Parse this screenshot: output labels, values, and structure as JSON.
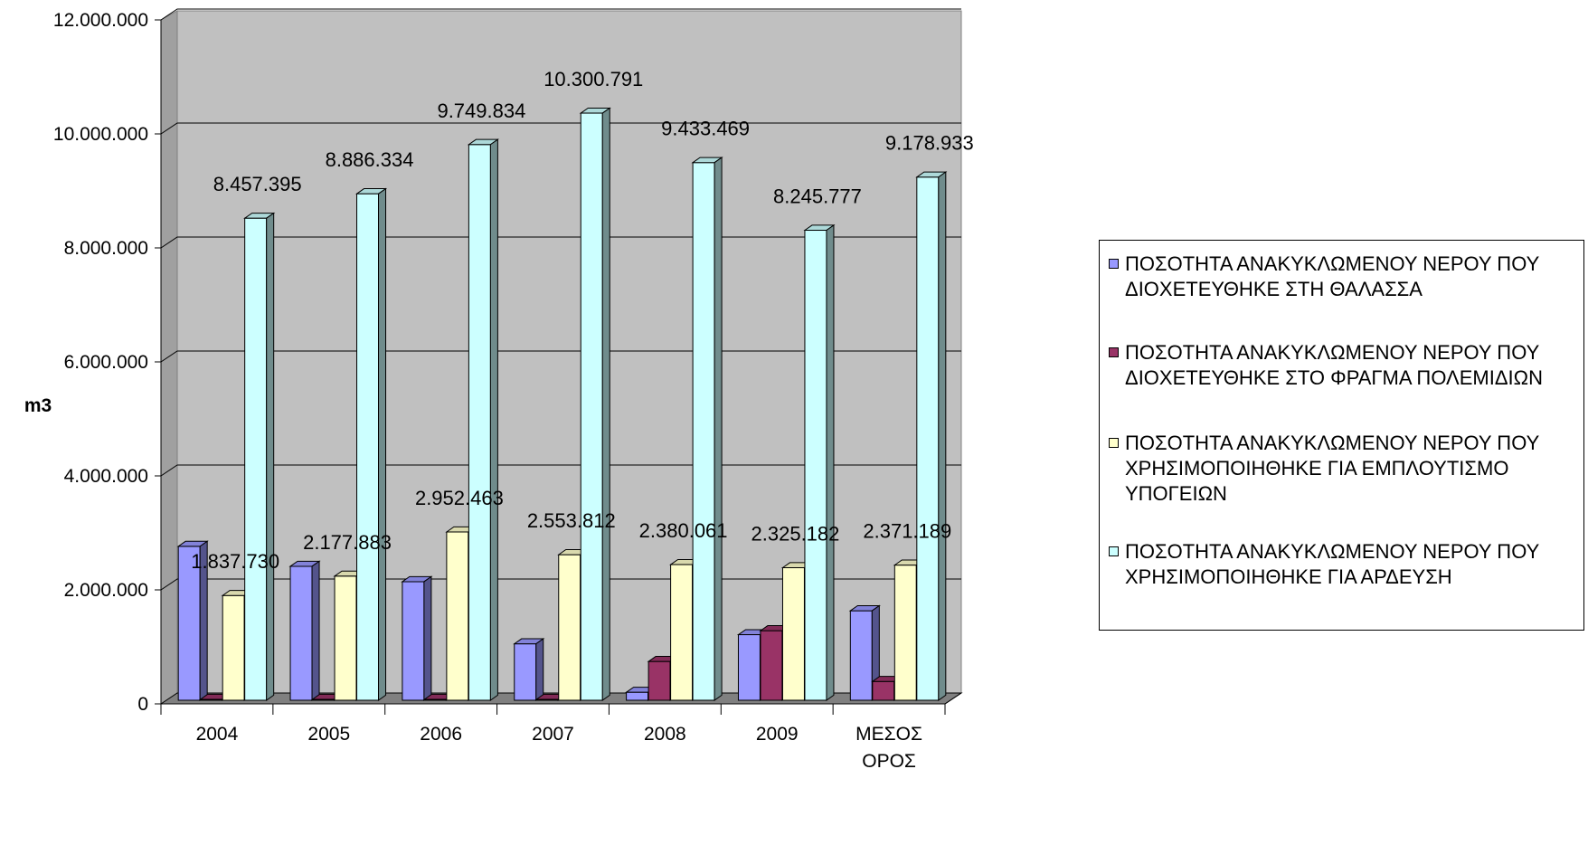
{
  "chart_data": {
    "type": "bar",
    "ylabel": "m3",
    "ylim": [
      0,
      12000000
    ],
    "yticks": [
      "0",
      "2.000.000",
      "4.000.000",
      "6.000.000",
      "8.000.000",
      "10.000.000",
      "12.000.000"
    ],
    "categories": [
      "2004",
      "2005",
      "2006",
      "2007",
      "2008",
      "2009",
      "ΜΕΣΟΣ ΟΡΟΣ"
    ],
    "grid": true,
    "legend_position": "right",
    "series": [
      {
        "name": "ΠΟΣΟΤΗΤΑ ΑΝΑΚΥΚΛΩΜΕΝΟΥ ΝΕΡΟΥ ΠΟΥ ΔΙΟΧΕΤΕΥΘΗΚΕ ΣΤΗ ΘΑΛΑΣΣΑ",
        "color": "#9999ff",
        "values": [
          2700000,
          2350000,
          2080000,
          990000,
          140000,
          1150000,
          1570000
        ],
        "labels": [
          "",
          "",
          "",
          "",
          "",
          "",
          ""
        ]
      },
      {
        "name": "ΠΟΣΟΤΗΤΑ ΑΝΑΚΥΚΛΩΜΕΝΟΥ ΝΕΡΟΥ ΠΟΥ ΔΙΟΧΕΤΕΥΘΗΚΕ ΣΤΟ ΦΡΑΓΜΑ ΠΟΛΕΜΙΔΙΩΝ",
        "color": "#993366",
        "values": [
          0,
          0,
          0,
          0,
          680000,
          1220000,
          330000
        ],
        "labels": [
          "",
          "",
          "",
          "",
          "",
          "",
          ""
        ]
      },
      {
        "name": "ΠΟΣΟΤΗΤΑ ΑΝΑΚΥΚΛΩΜΕΝΟΥ ΝΕΡΟΥ ΠΟΥ ΧΡΗΣΙΜΟΠΟΙΗΘΗΚΕ ΓΙΑ ΕΜΠΛΟΥΤΙΣΜΟ ΥΠΟΓΕΙΩΝ",
        "color": "#ffffcc",
        "values": [
          1837730,
          2177883,
          2952463,
          2553812,
          2380061,
          2325182,
          2371189
        ],
        "labels": [
          "1.837.730",
          "2.177.883",
          "2.952.463",
          "2.553.812",
          "2.380.061",
          "2.325.182",
          "2.371.189"
        ]
      },
      {
        "name": "ΠΟΣΟΤΗΤΑ ΑΝΑΚΥΚΛΩΜΕΝΟΥ ΝΕΡΟΥ ΠΟΥ ΧΡΗΣΙΜΟΠΟΙΗΘΗΚΕ ΓΙΑ ΑΡΔΕΥΣΗ",
        "color": "#ccffff",
        "values": [
          8457395,
          8886334,
          9749834,
          10300791,
          9433469,
          8245777,
          9178933
        ],
        "labels": [
          "8.457.395",
          "8.886.334",
          "9.749.834",
          "10.300.791",
          "9.433.469",
          "8.245.777",
          "9.178.933"
        ]
      }
    ],
    "colors": {
      "wall": "#c0c0c0",
      "floor": "#808080",
      "gridline": "#000000"
    }
  }
}
